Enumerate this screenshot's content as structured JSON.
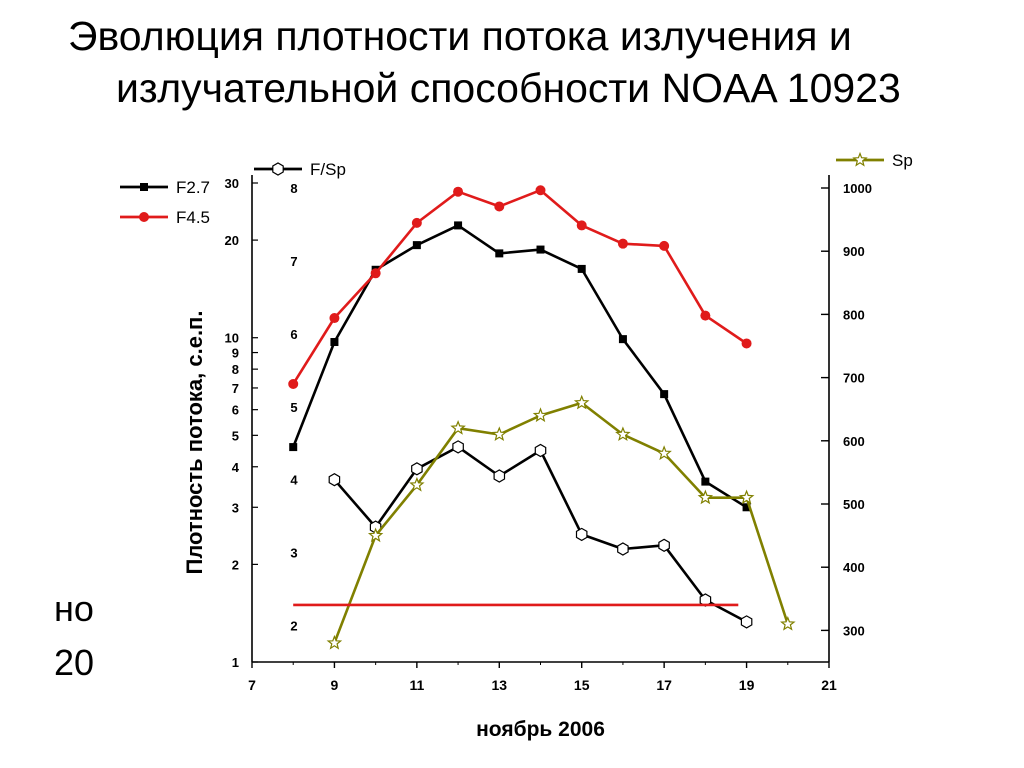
{
  "slide": {
    "title_line1": "Эволюция плотности потока излучения и",
    "title_line2": "излучательной способности NOAA 10923",
    "side_text_line1": "но",
    "side_text_line2": "20"
  },
  "chart_data": {
    "type": "line",
    "title": "",
    "xlabel": "ноябрь 2006",
    "ylabel": "Плотность потока, с.е.п.",
    "xlim": [
      7,
      21
    ],
    "x_ticks": [
      "7",
      "9",
      "11",
      "13",
      "15",
      "17",
      "19",
      "21"
    ],
    "left_axis": {
      "scale": "log",
      "ylim": [
        1,
        30
      ],
      "tick_values": [
        1,
        2,
        3,
        4,
        5,
        6,
        7,
        8,
        9,
        10,
        20,
        30
      ],
      "tick_labels": [
        "1",
        "2",
        "3",
        "4",
        "5",
        "6",
        "7",
        "8",
        "9",
        "10",
        "20",
        "30"
      ]
    },
    "inner_axis": {
      "scale": "linear",
      "ylim": [
        1.5,
        8
      ],
      "tick_values": [
        2,
        3,
        4,
        5,
        6,
        7,
        8
      ],
      "tick_labels": [
        "2",
        "3",
        "4",
        "5",
        "6",
        "7",
        "8"
      ]
    },
    "right_axis": {
      "scale": "linear",
      "ylim": [
        250,
        1000
      ],
      "tick_values": [
        300,
        400,
        500,
        600,
        700,
        800,
        900,
        1000
      ],
      "tick_labels": [
        "300",
        "400",
        "500",
        "600",
        "700",
        "800",
        "900",
        "1000"
      ]
    },
    "legend": [
      {
        "name": "F2.7",
        "placement": "top-left"
      },
      {
        "name": "F4.5",
        "placement": "top-left"
      },
      {
        "name": "F/Sp",
        "placement": "top"
      },
      {
        "name": "Sp",
        "placement": "top-right"
      }
    ],
    "series": [
      {
        "name": "F2.7",
        "axis": "left",
        "color": "#000000",
        "marker": "square",
        "x": [
          8,
          9,
          10,
          11,
          12,
          13,
          14,
          15,
          16,
          17,
          18,
          19
        ],
        "values": [
          4.6,
          9.7,
          16.2,
          19.3,
          22.2,
          18.2,
          18.7,
          16.3,
          9.9,
          6.7,
          3.6,
          3.0
        ]
      },
      {
        "name": "F4.5",
        "axis": "left",
        "color": "#e01b1b",
        "marker": "circle",
        "x": [
          8,
          9,
          10,
          11,
          12,
          13,
          14,
          15,
          16,
          17,
          18,
          19
        ],
        "values": [
          7.2,
          11.5,
          15.8,
          22.6,
          28.2,
          25.4,
          28.5,
          22.2,
          19.5,
          19.2,
          11.7,
          9.6
        ]
      },
      {
        "name": "F/Sp",
        "axis": "inner",
        "color": "#000000",
        "marker": "hexagon",
        "x": [
          9,
          10,
          11,
          12,
          13,
          14,
          15,
          16,
          17,
          18,
          19
        ],
        "values": [
          4.0,
          3.35,
          4.15,
          4.45,
          4.05,
          4.4,
          3.25,
          3.05,
          3.1,
          2.35,
          2.05
        ]
      },
      {
        "name": "Sp",
        "axis": "right",
        "color": "#808000",
        "marker": "star",
        "x": [
          9,
          10,
          11,
          12,
          13,
          14,
          15,
          16,
          17,
          18,
          19,
          20
        ],
        "values": [
          280,
          450,
          530,
          620,
          610,
          640,
          660,
          610,
          580,
          510,
          510,
          310
        ]
      },
      {
        "name": "",
        "axis": "left",
        "color": "#e01b1b",
        "marker": "none",
        "x": [
          8,
          18.8
        ],
        "values": [
          1.5,
          1.5
        ]
      }
    ]
  }
}
